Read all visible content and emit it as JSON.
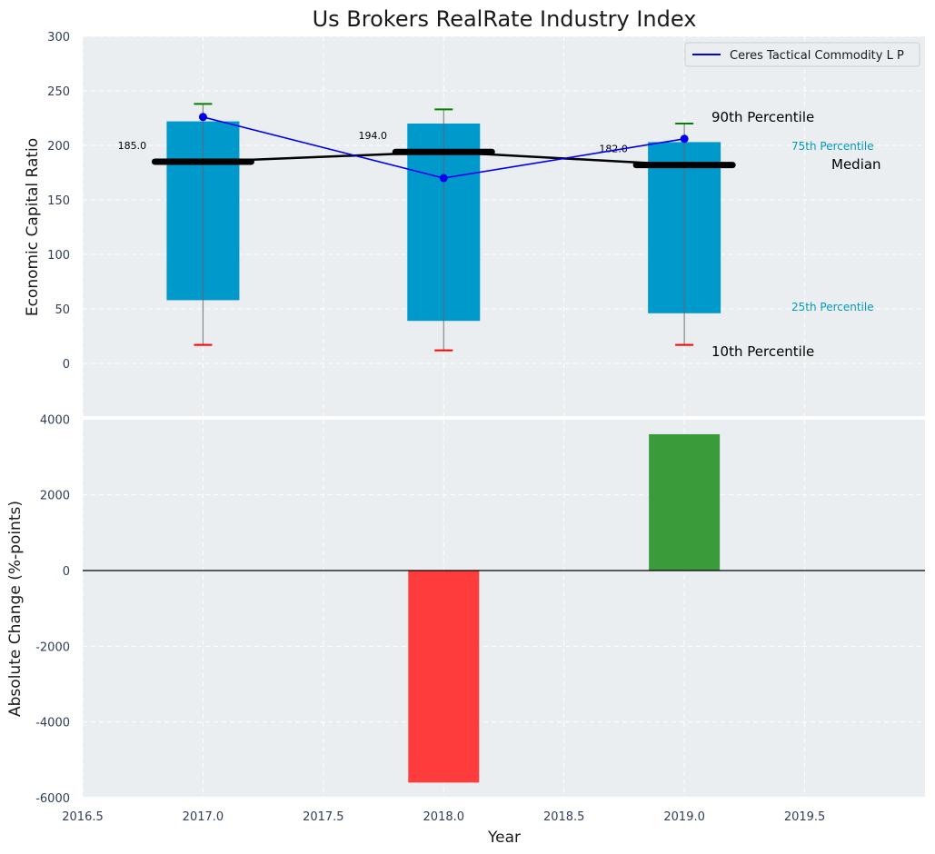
{
  "title": "Us Brokers RealRate Industry Index",
  "colors": {
    "panel_bg": "#eaeef0",
    "box": "#0099cc",
    "whisker_line": "#888888",
    "p90_cap": "#008000",
    "p10_cap": "#ff0000",
    "median": "#000000",
    "company_line": "#0000ee",
    "positive_bar": "#3a9b3a",
    "negative_bar": "#ff3c3c",
    "pct_label": "#0099bb"
  },
  "chart_data": [
    {
      "type": "box",
      "ylabel": "Economic Capital Ratio",
      "ylim": [
        0,
        300
      ],
      "yticks": [
        "0",
        "50",
        "100",
        "150",
        "200",
        "250",
        "300"
      ],
      "xlim": [
        2016.5,
        2020.0
      ],
      "years": [
        2017,
        2018,
        2019
      ],
      "p10": [
        17,
        12,
        17
      ],
      "p25": [
        58,
        39,
        46
      ],
      "median": [
        185,
        194,
        182
      ],
      "p75": [
        222,
        220,
        203
      ],
      "p90": [
        238,
        233,
        220
      ],
      "median_labels": [
        "185.0",
        "194.0",
        "182.0"
      ],
      "legend": {
        "position": "upper-right",
        "label": "Ceres Tactical Commodity L P"
      },
      "series": [
        {
          "name": "Ceres Tactical Commodity L P",
          "x": [
            2017,
            2018,
            2019
          ],
          "values": [
            226,
            170,
            206
          ]
        }
      ],
      "annotations": {
        "p90": "90th Percentile",
        "p75": "75th Percentile",
        "median": "Median",
        "p25": "25th Percentile",
        "p10": "10th Percentile"
      },
      "grid": true
    },
    {
      "type": "bar",
      "ylabel": "Absolute Change (%-points)",
      "xlabel": "Year",
      "ylim": [
        -6000,
        4000
      ],
      "yticks": [
        "-6000",
        "-4000",
        "-2000",
        "0",
        "2000",
        "4000"
      ],
      "xlim": [
        2016.5,
        2020.0
      ],
      "xticks": [
        "2016.5",
        "2017.0",
        "2017.5",
        "2018.0",
        "2018.5",
        "2019.0",
        "2019.5"
      ],
      "x": [
        2018,
        2019
      ],
      "values": [
        -5600,
        3600
      ],
      "grid": true
    }
  ]
}
